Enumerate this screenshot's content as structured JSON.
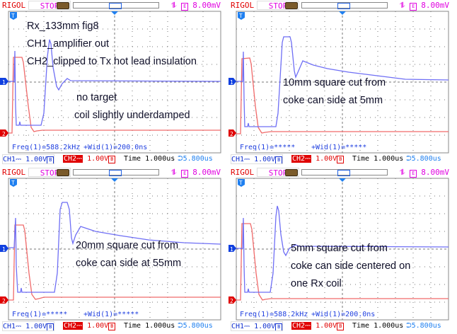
{
  "colors": {
    "ch1": "#6f6ff5",
    "ch2": "#f06a6a",
    "grid": "#777777"
  },
  "panels": [
    {
      "brand": "RIGOL",
      "state": "STOP",
      "trigger_level": "8.00mV",
      "freq": "Freq(1)=588.2kHz",
      "width": "+Wid(1)=200.0ns",
      "ch1_scale": "1.00V",
      "ch2_scale": "1.00V",
      "time_label": "Time",
      "timebase": "1.000us",
      "trigger_pos": "5.800us",
      "notes": [
        "Rx_133mm fig8",
        "CH1_amplifier out",
        "CH2_clipped to Tx hot lead insulation"
      ],
      "notes2": [
        "no target",
        "coil slightly underdamped"
      ]
    },
    {
      "brand": "RIGOL",
      "state": "STOP",
      "trigger_level": "8.00mV",
      "freq": "Freq(1)=*****",
      "width": "+Wid(1)=*****",
      "ch1_scale": "1.00V",
      "ch2_scale": "1.00V",
      "time_label": "Time",
      "timebase": "1.000us",
      "trigger_pos": "5.800us",
      "notes": [
        "10mm square cut from",
        "coke can side at 5mm"
      ],
      "notes2": []
    },
    {
      "brand": "RIGOL",
      "state": "STOP",
      "trigger_level": "8.00mV",
      "freq": "Freq(1)=*****",
      "width": "+Wid(1)=*****",
      "ch1_scale": "1.00V",
      "ch2_scale": "1.00V",
      "time_label": "Time",
      "timebase": "1.000us",
      "trigger_pos": "5.800us",
      "notes": [
        "20mm square cut from",
        "coke can side at 55mm"
      ],
      "notes2": []
    },
    {
      "brand": "RIGOL",
      "state": "STOP",
      "trigger_level": "8.00mV",
      "freq": "Freq(1)=588.2kHz",
      "width": "+Wid(1)=200.0ns",
      "ch1_scale": "1.00V",
      "ch2_scale": "1.00V",
      "time_label": "Time",
      "timebase": "1.000us",
      "trigger_pos": "5.800us",
      "notes": [
        "5mm square cut from",
        "coke can side centered on",
        "one Rx coil"
      ],
      "notes2": []
    }
  ],
  "labels": {
    "ch1": "CH1",
    "ch2": "CH2",
    "ch1_marker": "1",
    "ch2_marker": "2",
    "trig_marker": "T"
  }
}
